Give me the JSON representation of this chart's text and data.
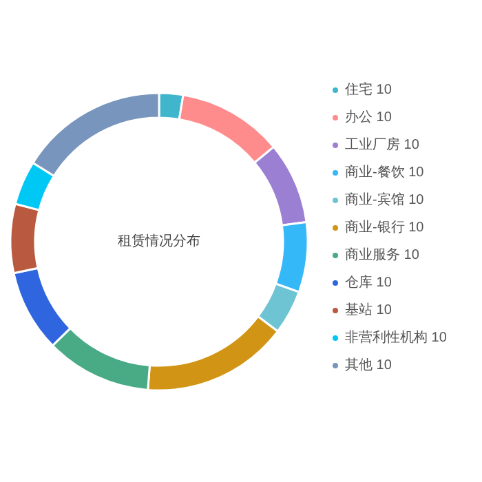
{
  "chart_data": {
    "type": "donut",
    "title": "租赁情况分布",
    "categories": [
      "住宅 10",
      "办公 10",
      "工业厂房 10",
      "商业-餐饮 10",
      "商业-宾馆 10",
      "商业-银行 10",
      "商业服务 10",
      "仓库 10",
      "基站 10",
      "非营利性机构 10",
      "其他 10"
    ],
    "values": [
      2.6,
      11.4,
      8.9,
      7.6,
      4.8,
      15.9,
      11.5,
      8.9,
      7.5,
      4.8,
      16.1
    ],
    "colors": [
      "#3fb6cc",
      "#ff8c8c",
      "#9b7fd3",
      "#35b8f8",
      "#6fc4d4",
      "#d19414",
      "#48ab86",
      "#2f66e0",
      "#b95a40",
      "#00c8f5",
      "#7895bd"
    ],
    "legend": "right"
  }
}
